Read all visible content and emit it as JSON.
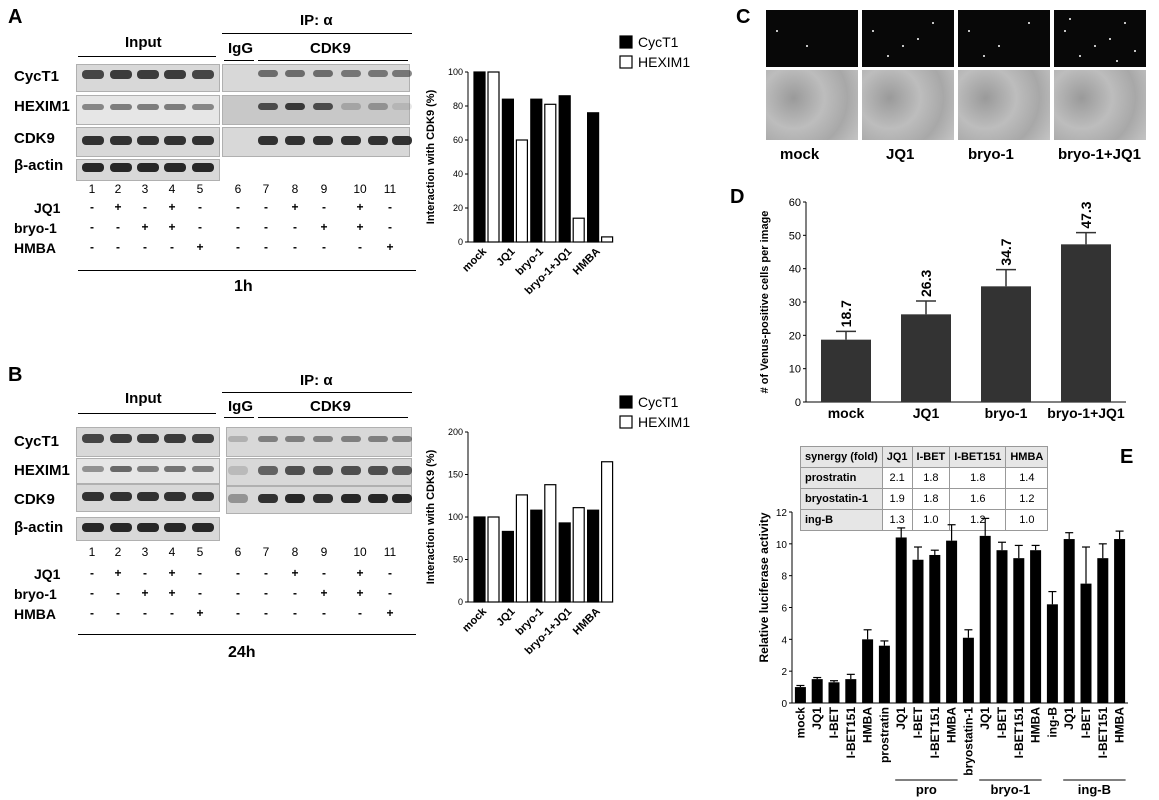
{
  "panels": {
    "A": "A",
    "B": "B",
    "C": "C",
    "D": "D",
    "E": "E"
  },
  "blots": {
    "input_label": "Input",
    "ip_label": "IP: α",
    "igg_label": "IgG",
    "cdk9_header": "CDK9",
    "rows": [
      "CycT1",
      "HEXIM1",
      "CDK9",
      "β-actin"
    ],
    "lanes": [
      "1",
      "2",
      "3",
      "4",
      "5",
      "6",
      "7",
      "8",
      "9",
      "10",
      "11"
    ],
    "treatments": [
      {
        "name": "JQ1",
        "signs": [
          "-",
          "+",
          "-",
          "+",
          "-",
          "-",
          "-",
          "+",
          "-",
          "+",
          "-"
        ]
      },
      {
        "name": "bryo-1",
        "signs": [
          "-",
          "-",
          "+",
          "+",
          "-",
          "-",
          "-",
          "-",
          "+",
          "+",
          "-"
        ]
      },
      {
        "name": "HMBA",
        "signs": [
          "-",
          "-",
          "-",
          "-",
          "+",
          "-",
          "-",
          "-",
          "-",
          "-",
          "+"
        ]
      }
    ],
    "time_A": "1h",
    "time_B": "24h"
  },
  "chart_data": [
    {
      "id": "A-bar",
      "type": "bar",
      "categories": [
        "mock",
        "JQ1",
        "bryo-1",
        "bryo-1+JQ1",
        "HMBA"
      ],
      "series": [
        {
          "name": "CycT1",
          "color": "#000000",
          "values": [
            100,
            84,
            84,
            86,
            76
          ]
        },
        {
          "name": "HEXIM1",
          "color": "#ffffff",
          "values": [
            100,
            60,
            81,
            14,
            3
          ]
        }
      ],
      "ylabel": "Interaction with CDK9 (%)",
      "ylim": [
        0,
        100
      ],
      "yticks": [
        0,
        20,
        40,
        60,
        80,
        100
      ],
      "legend": "top-right"
    },
    {
      "id": "B-bar",
      "type": "bar",
      "categories": [
        "mock",
        "JQ1",
        "bryo-1",
        "bryo-1+JQ1",
        "HMBA"
      ],
      "series": [
        {
          "name": "CycT1",
          "color": "#000000",
          "values": [
            100,
            83,
            108,
            93,
            108
          ]
        },
        {
          "name": "HEXIM1",
          "color": "#ffffff",
          "values": [
            100,
            126,
            138,
            111,
            165
          ]
        }
      ],
      "ylabel": "Interaction with CDK9 (%)",
      "ylim": [
        0,
        200
      ],
      "yticks": [
        0,
        50,
        100,
        150,
        200
      ],
      "legend": "top-right"
    },
    {
      "id": "D-bar",
      "type": "bar",
      "categories": [
        "mock",
        "JQ1",
        "bryo-1",
        "bryo-1+JQ1"
      ],
      "values": [
        18.7,
        26.3,
        34.7,
        47.3
      ],
      "errors": [
        2.5,
        4,
        5,
        3.5
      ],
      "value_labels": [
        "18.7",
        "26.3",
        "34.7",
        "47.3"
      ],
      "ylabel": "# of Venus-positive cells per image",
      "ylim": [
        0,
        60
      ],
      "yticks": [
        0,
        10,
        20,
        30,
        40,
        50,
        60
      ]
    },
    {
      "id": "E-bar",
      "type": "bar",
      "categories": [
        "mock",
        "JQ1",
        "I-BET",
        "I-BET151",
        "HMBA",
        "prostratin",
        "JQ1",
        "I-BET",
        "I-BET151",
        "HMBA",
        "bryostatin-1",
        "JQ1",
        "I-BET",
        "I-BET151",
        "HMBA",
        "ing-B",
        "JQ1",
        "I-BET",
        "I-BET151",
        "HMBA"
      ],
      "values": [
        1.0,
        1.5,
        1.3,
        1.5,
        4.0,
        3.6,
        10.4,
        9.0,
        9.3,
        10.2,
        4.1,
        10.5,
        9.6,
        9.1,
        9.6,
        6.2,
        10.3,
        7.5,
        9.1,
        10.3
      ],
      "errors": [
        0.1,
        0.1,
        0.1,
        0.3,
        0.6,
        0.3,
        0.6,
        0.8,
        0.3,
        1.0,
        0.5,
        1.1,
        0.5,
        0.8,
        0.3,
        0.8,
        0.4,
        2.3,
        0.9,
        0.5
      ],
      "groups": [
        {
          "label": "pro",
          "start": 6,
          "end": 9
        },
        {
          "label": "bryo-1",
          "start": 11,
          "end": 14
        },
        {
          "label": "ing-B",
          "start": 16,
          "end": 19
        }
      ],
      "ylabel": "Relative luciferase activity",
      "ylim": [
        0,
        12
      ],
      "yticks": [
        0,
        2,
        4,
        6,
        8,
        10,
        12
      ]
    }
  ],
  "panelC": {
    "labels": [
      "mock",
      "JQ1",
      "bryo-1",
      "bryo-1+JQ1"
    ]
  },
  "synergy_table": {
    "header": [
      "synergy (fold)",
      "JQ1",
      "I-BET",
      "I-BET151",
      "HMBA"
    ],
    "rows": [
      [
        "prostratin",
        "2.1",
        "1.8",
        "1.8",
        "1.4"
      ],
      [
        "bryostatin-1",
        "1.9",
        "1.8",
        "1.6",
        "1.2"
      ],
      [
        "ing-B",
        "1.3",
        "1.0",
        "1.2",
        "1.0"
      ]
    ]
  }
}
